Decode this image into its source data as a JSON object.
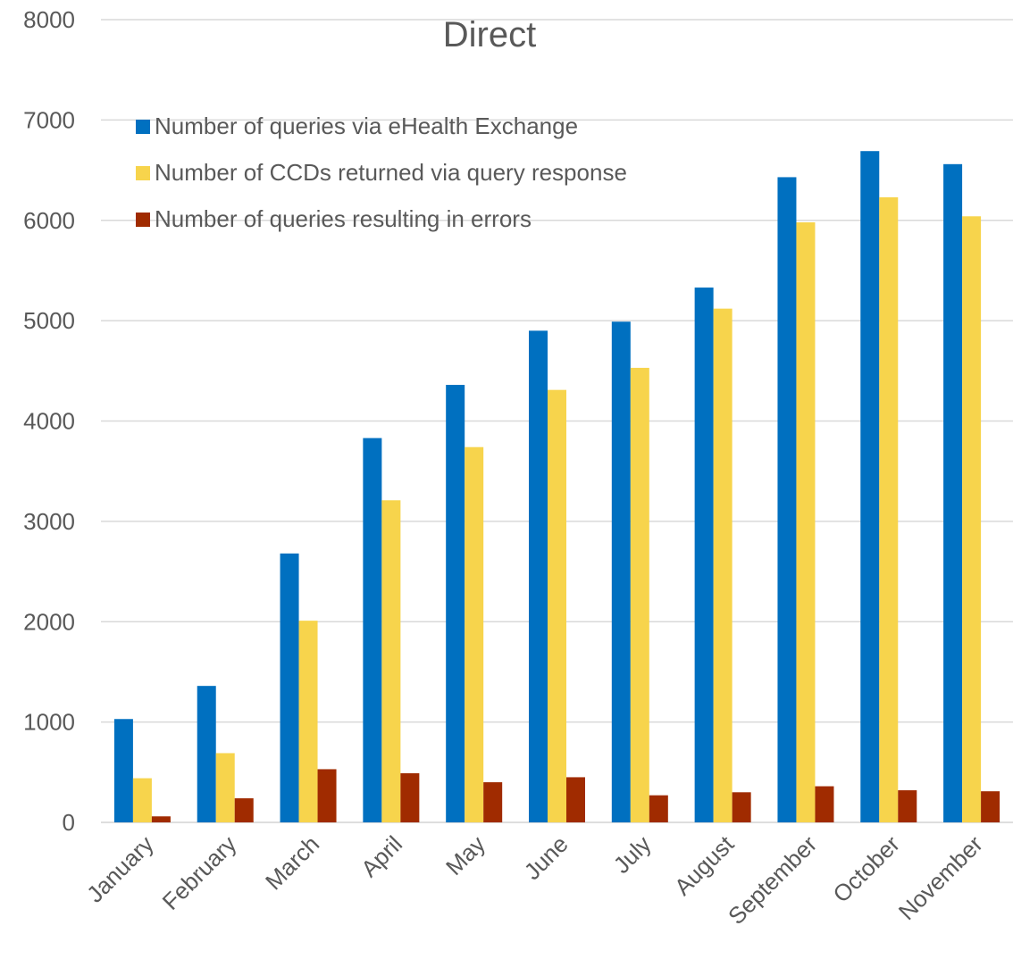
{
  "chart_data": {
    "type": "bar",
    "title": "Direct",
    "categories": [
      "January",
      "February",
      "March",
      "April",
      "May",
      "June",
      "July",
      "August",
      "September",
      "October",
      "November"
    ],
    "series": [
      {
        "name": "Number of queries via eHealth Exchange",
        "color": "#0070c0",
        "values": [
          1030,
          1360,
          2680,
          3830,
          4360,
          4900,
          4990,
          5330,
          6430,
          6690,
          6560
        ]
      },
      {
        "name": "Number of CCDs returned via query response",
        "color": "#f7d44c",
        "values": [
          440,
          690,
          2010,
          3210,
          3740,
          4310,
          4530,
          5120,
          5980,
          6230,
          6040
        ]
      },
      {
        "name": "Number of queries resulting in errors",
        "color": "#a02b00",
        "values": [
          60,
          240,
          530,
          490,
          400,
          450,
          270,
          300,
          360,
          320,
          310
        ]
      }
    ],
    "yticks": [
      0,
      1000,
      2000,
      3000,
      4000,
      5000,
      6000,
      7000,
      8000
    ],
    "ylim": [
      0,
      8000
    ],
    "xlabel": "",
    "ylabel": "",
    "grid": true,
    "legend_position": "top-left"
  }
}
